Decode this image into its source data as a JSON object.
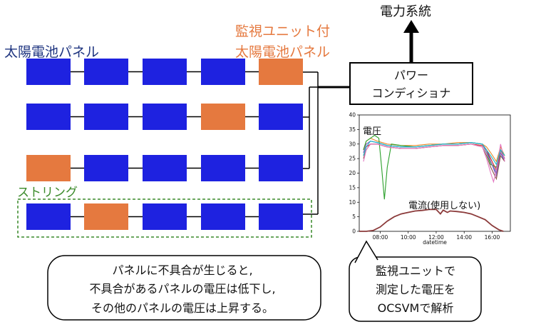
{
  "labels": {
    "panel_label": "太陽電池パネル",
    "monitor_label_line1": "監視ユニット付",
    "monitor_label_line2": "太陽電池パネル",
    "grid_label": "電力系統",
    "pcs_line1": "パワー",
    "pcs_line2": "コンディショナ",
    "string_label": "ストリング"
  },
  "colors": {
    "panel": "#1e22e0",
    "monitored_panel": "#e5793f",
    "panel_label": "#1f3580",
    "monitor_label": "#e5793f",
    "string_label": "#3a8a2a",
    "voltage_lines": [
      "#3a5ac0",
      "#e88a2a",
      "#2ca02c",
      "#d62728",
      "#9467bd",
      "#8c564b",
      "#e377c2",
      "#17becf"
    ],
    "current_line": "#8b3a3a"
  },
  "strings": [
    {
      "panels": [
        "normal",
        "normal",
        "normal",
        "normal",
        "monitored"
      ]
    },
    {
      "panels": [
        "normal",
        "normal",
        "normal",
        "monitored",
        "normal"
      ]
    },
    {
      "panels": [
        "monitored",
        "normal",
        "normal",
        "normal",
        "normal"
      ]
    },
    {
      "panels": [
        "normal",
        "monitored",
        "normal",
        "normal",
        "normal"
      ]
    }
  ],
  "callouts": {
    "left": {
      "lines": [
        "パネルに不具合が生じると,",
        "不具合があるパネルの電圧は低下し,",
        "その他のパネルの電圧は上昇する。"
      ]
    },
    "right": {
      "lines": [
        "監視ユニットで",
        "測定した電圧を",
        "OCSVMで解析"
      ]
    }
  },
  "chart_data": {
    "type": "line",
    "title": "",
    "xlabel": "datetime",
    "ylabel": "",
    "ylim": [
      0,
      40
    ],
    "xlim": [
      6.5,
      17.3
    ],
    "yticks": [
      0,
      5,
      10,
      15,
      20,
      25,
      30,
      35,
      40
    ],
    "xticks": [
      {
        "value": 8,
        "label": "08:00"
      },
      {
        "value": 10,
        "label": "10:00"
      },
      {
        "value": 12,
        "label": "12:00"
      },
      {
        "value": 14,
        "label": "14:00"
      },
      {
        "value": 16,
        "label": "16:00"
      }
    ],
    "annotations": {
      "voltage": "電圧",
      "current": "電流(使用しない)"
    },
    "series": [
      {
        "x": [
          6.8,
          7.0,
          7.3,
          7.8,
          8.5,
          9.5,
          10.5,
          11.5,
          12.5,
          13.5,
          14.5,
          15.3,
          15.6,
          15.9,
          16.3,
          16.6,
          16.9
        ],
        "y": [
          27,
          30,
          31,
          30.5,
          29.5,
          29,
          29,
          29.5,
          30,
          30,
          30.5,
          30,
          28,
          24,
          20,
          27,
          24
        ]
      },
      {
        "x": [
          6.8,
          7.0,
          7.3,
          7.8,
          8.5,
          9.5,
          10.5,
          11.5,
          12.5,
          13.5,
          14.5,
          15.3,
          15.6,
          15.9,
          16.3,
          16.6,
          16.9
        ],
        "y": [
          28,
          31,
          32,
          31,
          30,
          29.5,
          29.5,
          30,
          30,
          30.5,
          30.5,
          30,
          29,
          27,
          24,
          29,
          26
        ]
      },
      {
        "x": [
          6.8,
          7.0,
          7.3,
          7.6,
          7.9,
          8.1,
          8.3,
          8.5,
          8.8,
          9.5,
          10.5,
          11.5,
          12.5,
          13.5,
          14.5,
          15.3,
          15.6,
          15.9,
          16.3,
          16.6,
          16.9
        ],
        "y": [
          28,
          31,
          32,
          33,
          32,
          22,
          11,
          22,
          30,
          29.5,
          29,
          29.5,
          30,
          30,
          30.5,
          30,
          27,
          23,
          22,
          28,
          26
        ]
      },
      {
        "x": [
          6.8,
          7.0,
          7.3,
          7.8,
          8.5,
          9.5,
          10.5,
          11.5,
          12.5,
          13.5,
          14.5,
          15.3,
          15.6,
          15.9,
          16.3,
          16.6,
          16.9
        ],
        "y": [
          26,
          29,
          30,
          30,
          29,
          28.5,
          28.5,
          29,
          29.5,
          29.5,
          30,
          29.5,
          28,
          25,
          21,
          28,
          25
        ]
      },
      {
        "x": [
          6.8,
          7.0,
          7.3,
          7.8,
          8.5,
          9.5,
          10.5,
          11.5,
          12.5,
          13.5,
          14.5,
          15.3,
          15.6,
          15.9,
          16.3,
          16.6,
          16.9
        ],
        "y": [
          27,
          30,
          31,
          30.5,
          29.5,
          29,
          29,
          29.5,
          30,
          30,
          30.5,
          30,
          27,
          24,
          19,
          27,
          25
        ]
      },
      {
        "x": [
          6.8,
          7.0,
          7.3,
          7.8,
          8.5,
          9.5,
          10.5,
          11.5,
          12.5,
          13.5,
          14.5,
          15.3,
          15.6,
          15.9,
          16.3,
          16.6,
          16.9
        ],
        "y": [
          25,
          28,
          30,
          30,
          29,
          28.5,
          28.5,
          29,
          29.5,
          29.5,
          30,
          29,
          26,
          22,
          18,
          26,
          24
        ]
      },
      {
        "x": [
          6.8,
          7.0,
          7.3,
          7.8,
          8.5,
          9.5,
          10.5,
          11.5,
          12.5,
          13.5,
          14.5,
          15.3,
          15.6,
          15.9,
          16.1,
          16.3,
          16.6,
          16.9
        ],
        "y": [
          24,
          28,
          30,
          30,
          29,
          28.5,
          28.5,
          29,
          29.5,
          29.5,
          30,
          29,
          25,
          20,
          17,
          21,
          30,
          24
        ]
      },
      {
        "x": [
          6.8,
          7.0,
          7.3,
          7.8,
          8.5,
          9.5,
          10.5,
          11.5,
          12.5,
          13.5,
          14.5,
          15.3,
          15.6,
          15.9,
          16.3,
          16.6,
          16.9
        ],
        "y": [
          26,
          29,
          31,
          30.5,
          29.5,
          29,
          29,
          29.5,
          30,
          30,
          30.5,
          30,
          28,
          26,
          23,
          28,
          26
        ]
      },
      {
        "x": [
          6.5,
          7.0,
          7.5,
          8.0,
          8.5,
          9.0,
          9.5,
          10.0,
          10.5,
          11.0,
          11.5,
          12.0,
          12.3,
          12.5,
          12.8,
          13.0,
          13.5,
          14.0,
          14.5,
          15.0,
          15.5,
          16.0,
          16.5,
          16.8
        ],
        "y": [
          0,
          0,
          0.3,
          1.5,
          3.5,
          5,
          6,
          6.5,
          7,
          7.2,
          7.5,
          7.5,
          6,
          7.3,
          6.5,
          7,
          6.8,
          6.5,
          6,
          5,
          4,
          2,
          0.5,
          0
        ]
      }
    ]
  }
}
